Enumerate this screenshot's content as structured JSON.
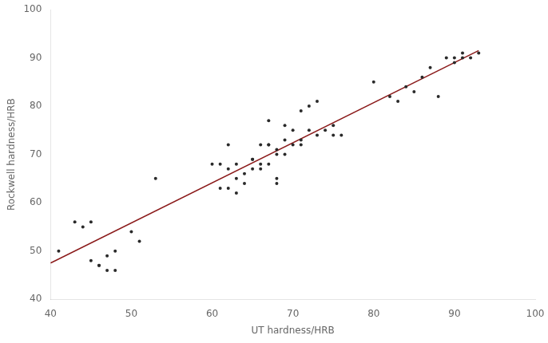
{
  "chart_data": {
    "type": "scatter",
    "xlabel": "UT hardness/HRB",
    "ylabel": "Rockwell hardness/HRB",
    "xlim": [
      40,
      100
    ],
    "ylim": [
      40,
      100
    ],
    "xticks": [
      40,
      50,
      60,
      70,
      80,
      90,
      100
    ],
    "yticks": [
      40,
      50,
      60,
      70,
      80,
      90,
      100
    ],
    "grid": false,
    "series": [
      {
        "type": "line",
        "color": "#8B1A1A",
        "x": [
          40,
          93
        ],
        "values": [
          47.5,
          91.5
        ]
      },
      {
        "type": "scatter",
        "color": "#2a2a2a",
        "x": [
          41,
          43,
          44,
          45,
          45,
          46,
          46,
          47,
          47,
          48,
          48,
          50,
          51,
          53,
          60,
          61,
          61,
          62,
          62,
          62,
          63,
          63,
          63,
          64,
          64,
          65,
          65,
          65,
          66,
          66,
          66,
          67,
          67,
          67,
          67,
          68,
          68,
          68,
          68,
          69,
          69,
          69,
          70,
          70,
          71,
          71,
          71,
          72,
          72,
          73,
          73,
          74,
          75,
          75,
          76,
          80,
          82,
          83,
          84,
          85,
          86,
          87,
          88,
          89,
          90,
          90,
          91,
          91,
          92,
          93
        ],
        "values": [
          50,
          56,
          55,
          56,
          48,
          47,
          47,
          49,
          46,
          46,
          50,
          54,
          52,
          65,
          68,
          63,
          68,
          63,
          67,
          72,
          62,
          65,
          68,
          64,
          66,
          69,
          69,
          67,
          68,
          67,
          72,
          68,
          72,
          72,
          77,
          71,
          65,
          70,
          64,
          70,
          76,
          73,
          75,
          72,
          73,
          72,
          79,
          75,
          80,
          81,
          74,
          75,
          76,
          74,
          74,
          85,
          82,
          81,
          84,
          83,
          86,
          88,
          82,
          90,
          89,
          90,
          90,
          91,
          90,
          91
        ]
      }
    ]
  }
}
